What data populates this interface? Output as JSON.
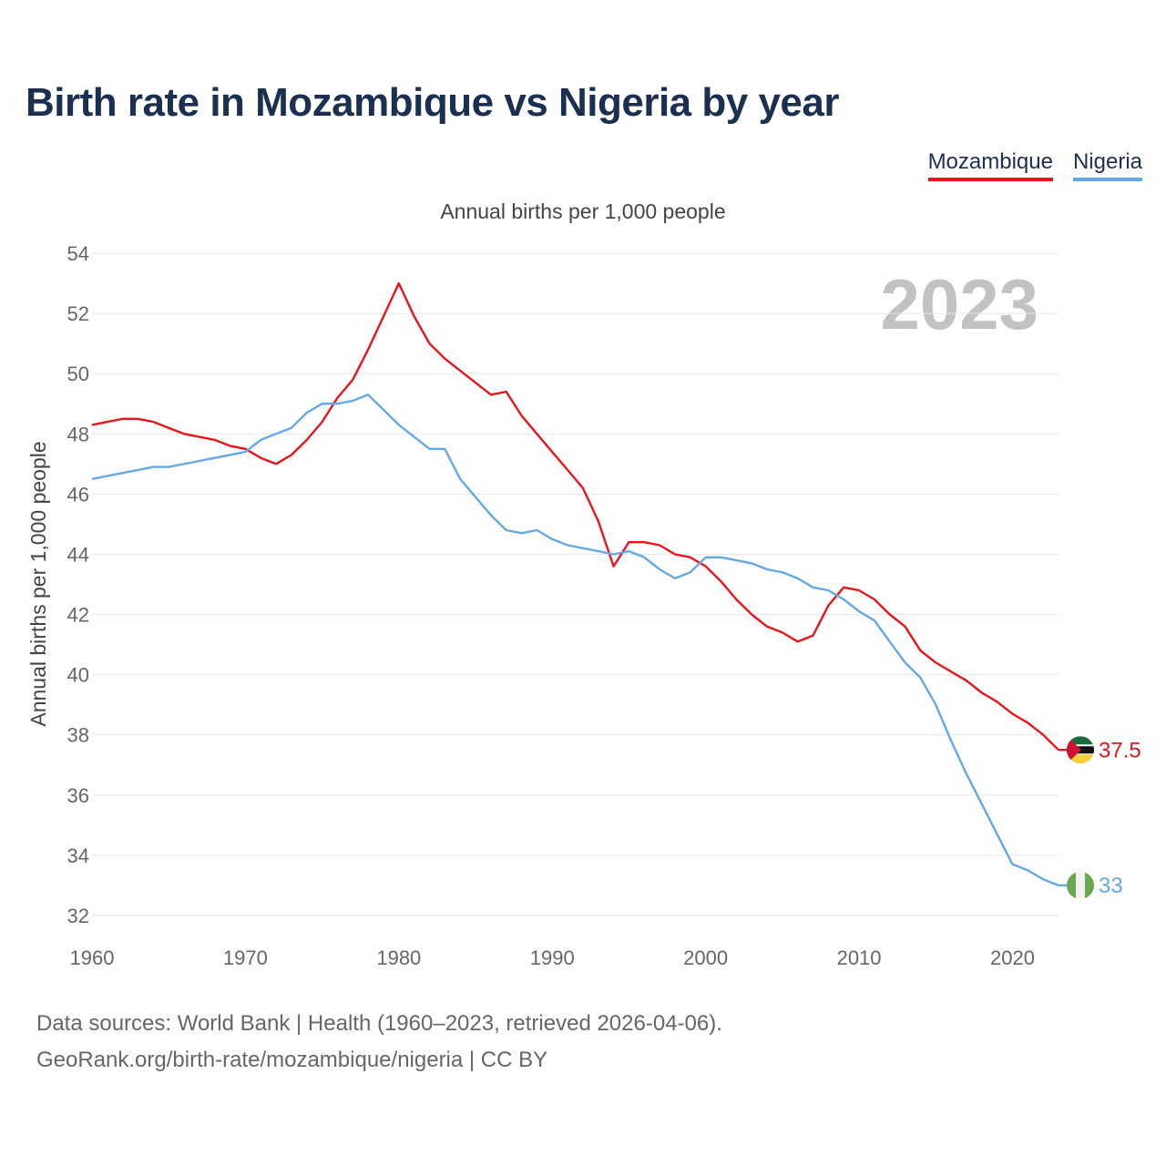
{
  "title": "Birth rate in Mozambique vs Nigeria by year",
  "legend": [
    {
      "label": "Mozambique",
      "color": "#e8151b"
    },
    {
      "label": "Nigeria",
      "color": "#64a8e6"
    }
  ],
  "footer": {
    "line1": "Data sources: World Bank | Health (1960–2023, retrieved 2026-04-06).",
    "line2": "GeoRank.org/birth-rate/mozambique/nigeria | CC BY"
  },
  "chart_data": {
    "type": "line",
    "title": "Birth rate in Mozambique vs Nigeria by year",
    "subtitle": "Annual births per 1,000 people",
    "xlabel": "",
    "ylabel": "Annual births per 1,000 people",
    "year_overlay": "2023",
    "xlim": [
      1960,
      2023
    ],
    "ylim": [
      32,
      54
    ],
    "x_ticks": [
      1960,
      1970,
      1980,
      1990,
      2000,
      2010,
      2020
    ],
    "y_ticks": [
      32,
      34,
      36,
      38,
      40,
      42,
      44,
      46,
      48,
      50,
      52,
      54
    ],
    "grid": true,
    "legend_position": "top-right",
    "x": [
      1960,
      1961,
      1962,
      1963,
      1964,
      1965,
      1966,
      1967,
      1968,
      1969,
      1970,
      1971,
      1972,
      1973,
      1974,
      1975,
      1976,
      1977,
      1978,
      1979,
      1980,
      1981,
      1982,
      1983,
      1984,
      1985,
      1986,
      1987,
      1988,
      1989,
      1990,
      1991,
      1992,
      1993,
      1994,
      1995,
      1996,
      1997,
      1998,
      1999,
      2000,
      2001,
      2002,
      2003,
      2004,
      2005,
      2006,
      2007,
      2008,
      2009,
      2010,
      2011,
      2012,
      2013,
      2014,
      2015,
      2016,
      2017,
      2018,
      2019,
      2020,
      2021,
      2022,
      2023
    ],
    "series": [
      {
        "name": "Mozambique",
        "color": "#e8151b",
        "end_label": "37.5",
        "values": [
          48.3,
          48.4,
          48.5,
          48.5,
          48.4,
          48.2,
          48.0,
          47.9,
          47.8,
          47.6,
          47.5,
          47.2,
          47.0,
          47.3,
          47.8,
          48.4,
          49.2,
          49.8,
          50.8,
          51.9,
          53.0,
          51.9,
          51.0,
          50.5,
          50.1,
          49.7,
          49.3,
          49.4,
          48.6,
          48.0,
          47.4,
          46.8,
          46.2,
          45.1,
          43.6,
          44.4,
          44.4,
          44.3,
          44.0,
          43.9,
          43.6,
          43.1,
          42.5,
          42.0,
          41.6,
          41.4,
          41.1,
          41.3,
          42.3,
          42.9,
          42.8,
          42.5,
          42.0,
          41.6,
          40.8,
          40.4,
          40.1,
          39.8,
          39.4,
          39.1,
          38.7,
          38.4,
          38.0,
          37.5
        ]
      },
      {
        "name": "Nigeria",
        "color": "#64a8e6",
        "end_label": "33",
        "values": [
          46.5,
          46.6,
          46.7,
          46.8,
          46.9,
          46.9,
          47.0,
          47.1,
          47.2,
          47.3,
          47.4,
          47.8,
          48.0,
          48.2,
          48.7,
          49.0,
          49.0,
          49.1,
          49.3,
          48.8,
          48.3,
          47.9,
          47.5,
          47.5,
          46.5,
          45.9,
          45.3,
          44.8,
          44.7,
          44.8,
          44.5,
          44.3,
          44.2,
          44.1,
          44.0,
          44.1,
          43.9,
          43.5,
          43.2,
          43.4,
          43.9,
          43.9,
          43.8,
          43.7,
          43.5,
          43.4,
          43.2,
          42.9,
          42.8,
          42.5,
          42.1,
          41.8,
          41.1,
          40.4,
          39.9,
          39.0,
          37.8,
          36.7,
          35.7,
          34.7,
          33.7,
          33.5,
          33.2,
          33.0
        ]
      }
    ]
  }
}
